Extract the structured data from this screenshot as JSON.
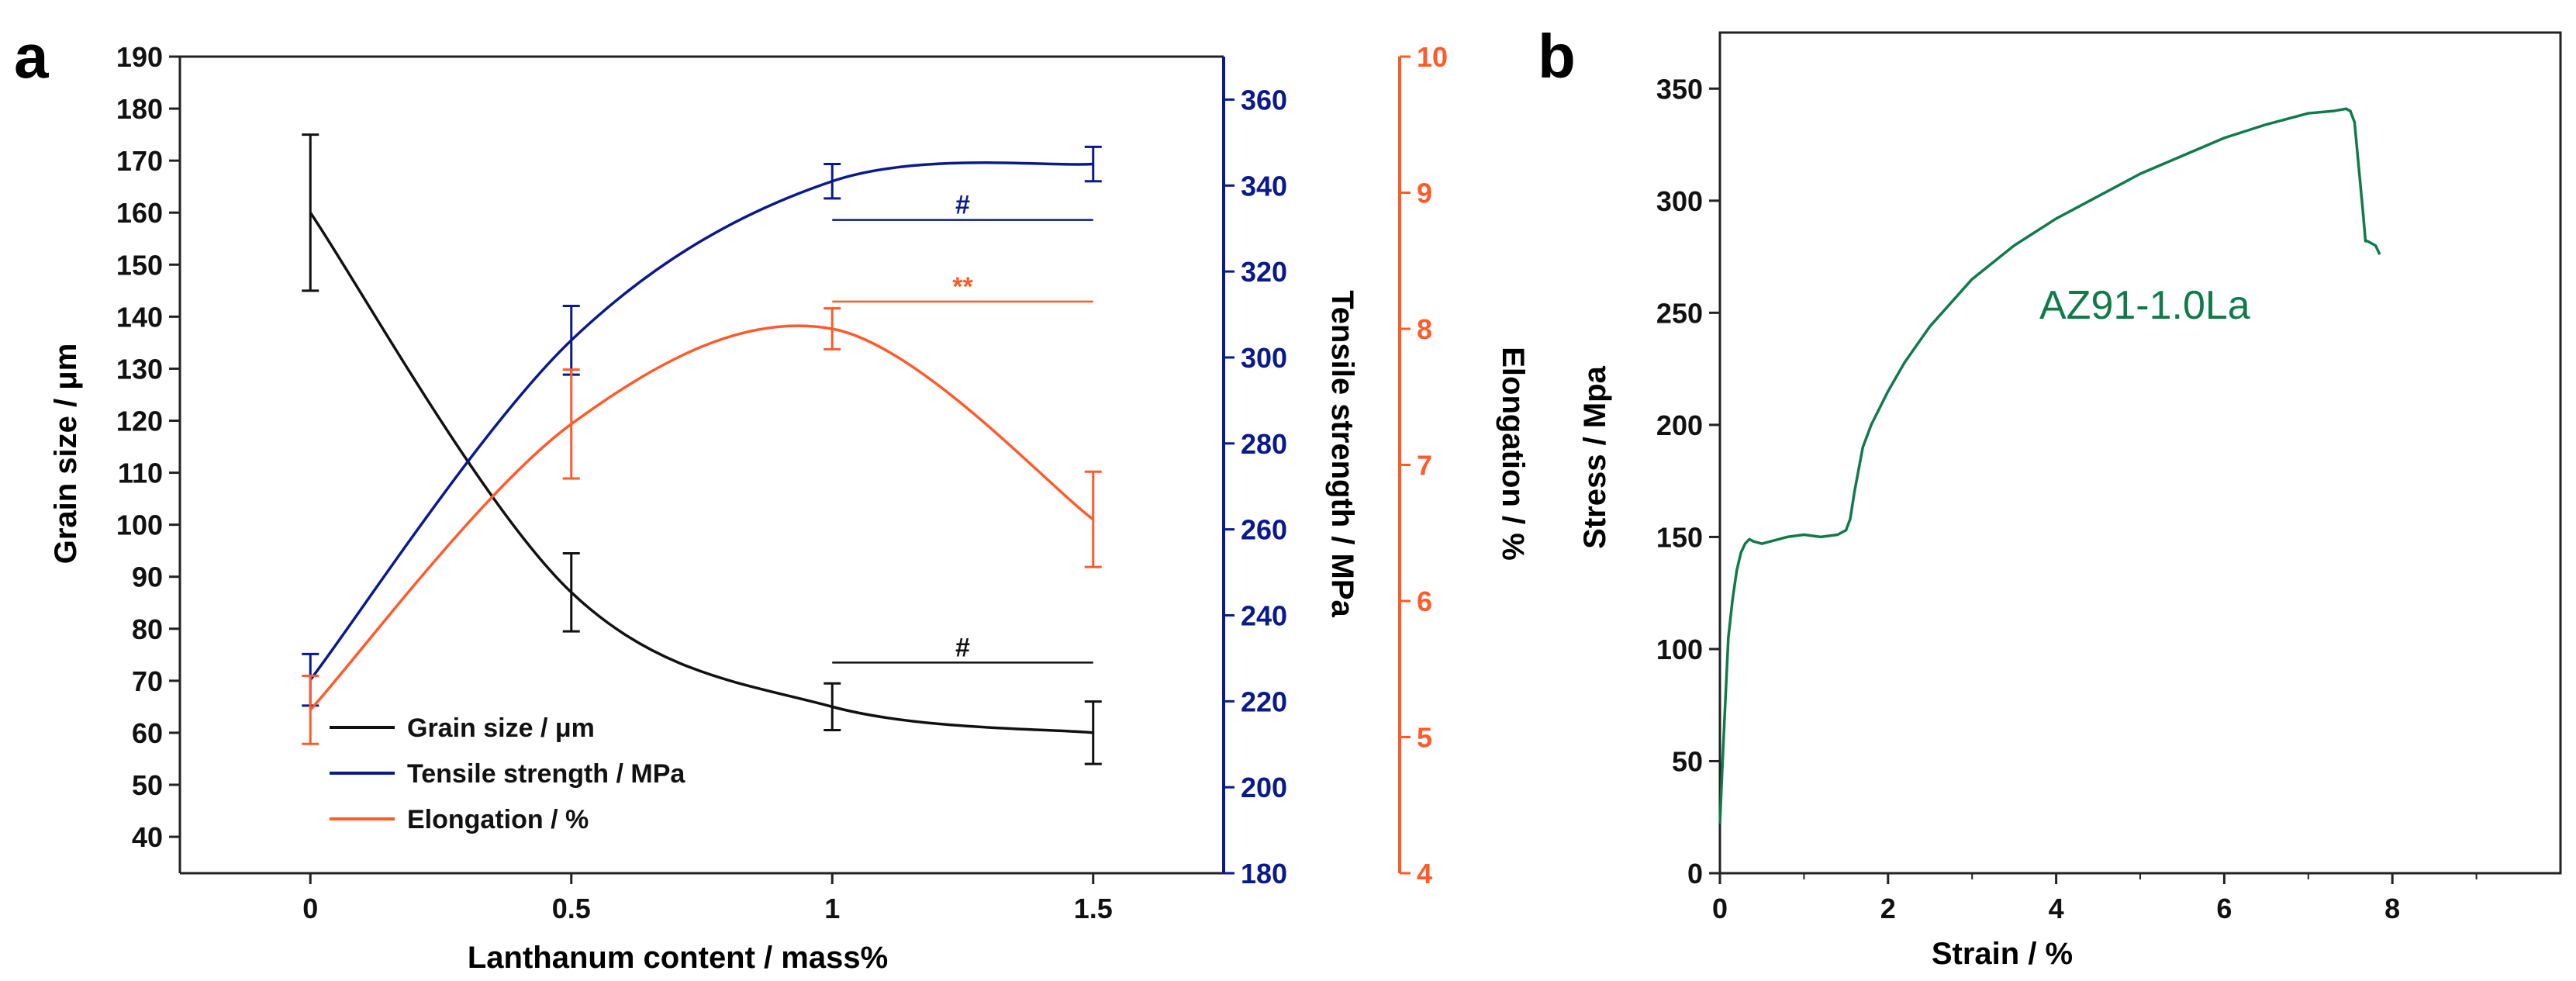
{
  "figure": {
    "panel_a_label": "a",
    "panel_b_label": "b"
  },
  "colors": {
    "grain": "#111111",
    "tensile": "#0a1a8c",
    "elong": "#ff5a2a",
    "stress": "#0f7a4a",
    "axis": "#222222"
  },
  "chart_data": [
    {
      "panel": "a",
      "type": "line",
      "xlabel": "Lanthanum  content / mass%",
      "xlim": [
        -0.25,
        1.75
      ],
      "xticks": [
        "0",
        "0.5",
        "1",
        "1.5"
      ],
      "x": [
        0,
        0.5,
        1,
        1.5
      ],
      "axes": {
        "grain": {
          "label": "Grain size / μm",
          "lim": [
            33,
            190
          ],
          "ticks": [
            "40",
            "50",
            "60",
            "70",
            "80",
            "90",
            "100",
            "110",
            "120",
            "130",
            "140",
            "150",
            "160",
            "170",
            "180",
            "190"
          ]
        },
        "tensile": {
          "label": "Tensile strength / MPa",
          "lim": [
            180,
            370
          ],
          "ticks": [
            "180",
            "200",
            "220",
            "240",
            "260",
            "280",
            "300",
            "320",
            "340",
            "360"
          ]
        },
        "elong": {
          "label": "Elongation / %",
          "lim": [
            4,
            10
          ],
          "ticks": [
            "4",
            "5",
            "6",
            "7",
            "8",
            "9",
            "10"
          ]
        }
      },
      "series": [
        {
          "key": "grain",
          "name": "Grain size / μm",
          "axis": "grain",
          "values": [
            160,
            87,
            65,
            60
          ],
          "errors": [
            15,
            7.5,
            4.5,
            6
          ]
        },
        {
          "key": "tensile",
          "name": "Tensile strength / MPa",
          "axis": "tensile",
          "values": [
            225,
            304,
            341,
            345
          ],
          "errors": [
            6,
            8,
            4,
            4
          ]
        },
        {
          "key": "elong",
          "name": "Elongation / %",
          "axis": "elong",
          "values": [
            5.2,
            7.3,
            8.0,
            6.6
          ],
          "errors": [
            0.25,
            0.4,
            0.15,
            0.35
          ]
        }
      ],
      "annotations": [
        {
          "text": "#",
          "axis": "tensile",
          "y": 332,
          "x_from": 1,
          "x_to": 1.5,
          "color_key": "tensile"
        },
        {
          "text": "**",
          "axis": "elong",
          "y": 8.2,
          "x_from": 1,
          "x_to": 1.5,
          "color_key": "elong"
        },
        {
          "text": "#",
          "axis": "grain",
          "y": 73.5,
          "x_from": 1,
          "x_to": 1.5,
          "color_key": "grain"
        }
      ],
      "legend": {
        "placement": "bottom-left",
        "items": [
          "Grain size / μm",
          "Tensile strength / MPa",
          "Elongation / %"
        ]
      }
    },
    {
      "panel": "b",
      "type": "line",
      "xlabel": "Strain / %",
      "ylabel": "Stress / Mpa",
      "xlim": [
        0,
        10
      ],
      "ylim": [
        0,
        375
      ],
      "xticks": [
        "0",
        "2",
        "4",
        "6",
        "8"
      ],
      "yticks": [
        "0",
        "50",
        "100",
        "150",
        "200",
        "250",
        "300",
        "350"
      ],
      "series_label": "AZ91-1.0La",
      "x": [
        0,
        0.02,
        0.05,
        0.1,
        0.15,
        0.2,
        0.25,
        0.3,
        0.35,
        0.4,
        0.5,
        0.6,
        0.8,
        1.0,
        1.2,
        1.4,
        1.5,
        1.55,
        1.6,
        1.65,
        1.7,
        1.8,
        2.0,
        2.2,
        2.5,
        3.0,
        3.5,
        4.0,
        4.5,
        5.0,
        5.5,
        6.0,
        6.5,
        7.0,
        7.3,
        7.45,
        7.5,
        7.55,
        7.6,
        7.65,
        7.68,
        7.7,
        7.75,
        7.8,
        7.85
      ],
      "y": [
        22,
        40,
        65,
        105,
        122,
        135,
        143,
        147,
        149,
        148,
        147,
        148,
        150,
        151,
        150,
        151,
        153,
        158,
        170,
        180,
        190,
        200,
        215,
        228,
        244,
        265,
        280,
        292,
        302,
        312,
        320,
        328,
        334,
        339,
        340,
        341,
        340,
        335,
        315,
        295,
        282,
        282,
        281,
        280,
        276
      ]
    }
  ]
}
